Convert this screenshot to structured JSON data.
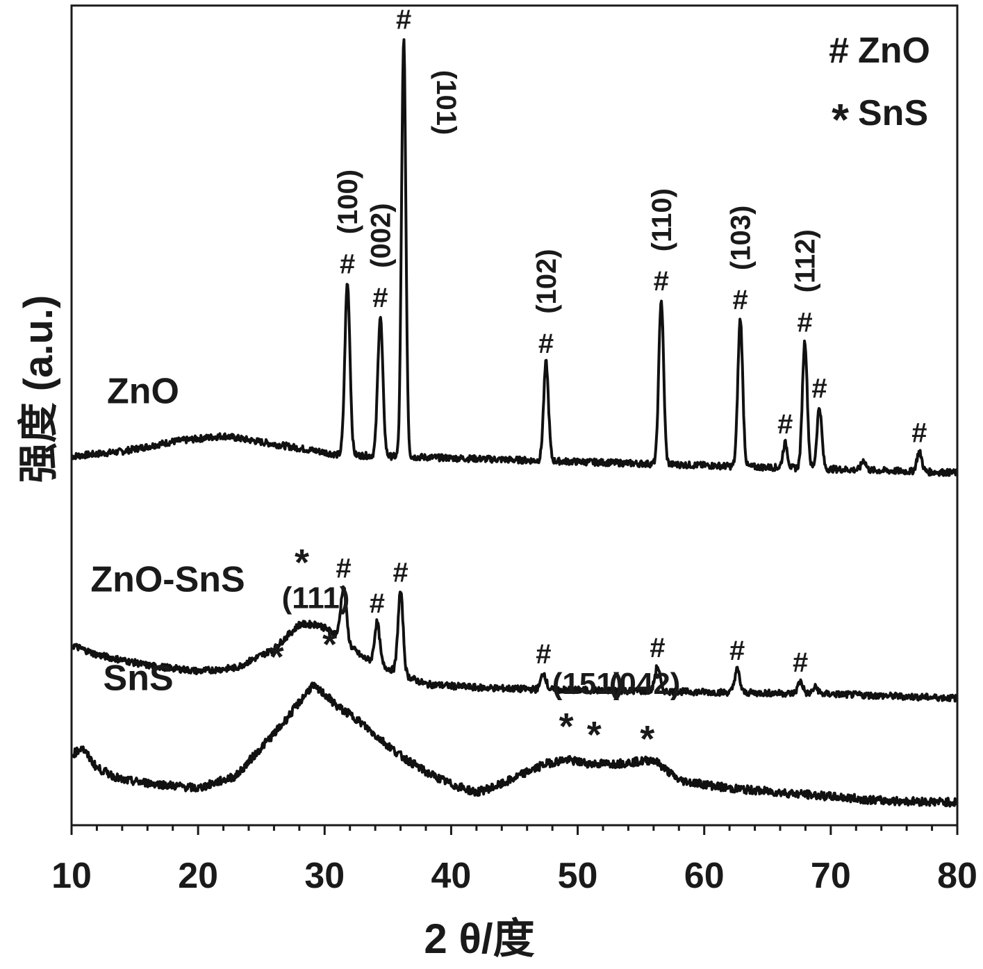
{
  "chart_data": {
    "type": "line",
    "xlabel": "2 θ/度",
    "ylabel": "强度 (a.u.)",
    "xlim": [
      10,
      80
    ],
    "x_ticks": [
      "10",
      "20",
      "30",
      "40",
      "50",
      "60",
      "70",
      "80"
    ],
    "y_ticks": [],
    "grid": false,
    "legend_position": "top-right",
    "legend": [
      {
        "symbol": "#",
        "label": "ZnO"
      },
      {
        "symbol": "*",
        "label": "SnS"
      }
    ],
    "series": [
      {
        "name": "ZnO",
        "baseline": 0.44,
        "noise": 0.004,
        "x": [
          10,
          14,
          18,
          22,
          26,
          30,
          31,
          80
        ],
        "y": [
          0.45,
          0.456,
          0.468,
          0.475,
          0.465,
          0.455,
          0.452,
          0.43
        ],
        "peaks": [
          {
            "x": 31.8,
            "h": 0.21,
            "w": 0.2,
            "label": "#"
          },
          {
            "x": 34.4,
            "h": 0.17,
            "w": 0.2,
            "label": "#"
          },
          {
            "x": 36.25,
            "h": 0.51,
            "w": 0.17,
            "label": "#"
          },
          {
            "x": 47.5,
            "h": 0.12,
            "w": 0.19,
            "label": "#"
          },
          {
            "x": 56.6,
            "h": 0.2,
            "w": 0.19,
            "label": "#"
          },
          {
            "x": 62.85,
            "h": 0.18,
            "w": 0.19,
            "label": "#"
          },
          {
            "x": 66.4,
            "h": 0.03,
            "w": 0.18,
            "label": "#"
          },
          {
            "x": 67.95,
            "h": 0.155,
            "w": 0.19,
            "label": "#"
          },
          {
            "x": 69.1,
            "h": 0.075,
            "w": 0.19,
            "label": "#"
          },
          {
            "x": 72.6,
            "h": 0.012,
            "w": 0.18,
            "label": ""
          },
          {
            "x": 77.0,
            "h": 0.024,
            "w": 0.2,
            "label": "#"
          }
        ],
        "miller_labels": [
          {
            "text": "(100)",
            "x": 31.8
          },
          {
            "text": "(002)",
            "x": 34.4
          },
          {
            "text": "(101)",
            "x": 36.25
          },
          {
            "text": "(102)",
            "x": 47.5
          },
          {
            "text": "(110)",
            "x": 56.6
          },
          {
            "text": "(103)",
            "x": 62.85
          },
          {
            "text": "(112)",
            "x": 67.95
          }
        ]
      },
      {
        "name": "ZnO-SnS",
        "noise": 0.004,
        "x": [
          10,
          12,
          16,
          20,
          23,
          26,
          28,
          29.5,
          31,
          33,
          36,
          38,
          42,
          46,
          50,
          54,
          58,
          62,
          66,
          70,
          74,
          80
        ],
        "y": [
          0.22,
          0.208,
          0.195,
          0.188,
          0.192,
          0.215,
          0.245,
          0.245,
          0.232,
          0.205,
          0.185,
          0.172,
          0.168,
          0.166,
          0.165,
          0.164,
          0.163,
          0.162,
          0.161,
          0.16,
          0.158,
          0.155
        ],
        "peaks": [
          {
            "x": 31.5,
            "h": 0.065,
            "w": 0.22,
            "label": "#"
          },
          {
            "x": 34.15,
            "h": 0.05,
            "w": 0.2,
            "label": "#"
          },
          {
            "x": 36.0,
            "h": 0.1,
            "w": 0.2,
            "label": "#"
          },
          {
            "x": 47.3,
            "h": 0.02,
            "w": 0.2,
            "label": "#"
          },
          {
            "x": 56.3,
            "h": 0.03,
            "w": 0.2,
            "label": "#"
          },
          {
            "x": 62.6,
            "h": 0.028,
            "w": 0.2,
            "label": "#"
          },
          {
            "x": 67.6,
            "h": 0.015,
            "w": 0.2,
            "label": "#"
          },
          {
            "x": 68.8,
            "h": 0.008,
            "w": 0.2,
            "label": ""
          }
        ]
      },
      {
        "name": "SnS",
        "noise": 0.005,
        "x": [
          10,
          10.8,
          12,
          14,
          17,
          20,
          23,
          25,
          26.5,
          27.5,
          29,
          30,
          31,
          32.5,
          34,
          36,
          38,
          40,
          42,
          44,
          46,
          47.5,
          49,
          51,
          53,
          55,
          56,
          58,
          62,
          66,
          70,
          74,
          80
        ],
        "y": [
          0.085,
          0.095,
          0.07,
          0.055,
          0.05,
          0.045,
          0.06,
          0.095,
          0.12,
          0.14,
          0.17,
          0.16,
          0.145,
          0.13,
          0.11,
          0.085,
          0.065,
          0.05,
          0.04,
          0.05,
          0.065,
          0.075,
          0.08,
          0.075,
          0.075,
          0.078,
          0.08,
          0.055,
          0.045,
          0.04,
          0.035,
          0.03,
          0.028
        ]
      }
    ],
    "annotations": [
      {
        "text": "*",
        "x": 28.2,
        "y": 0.305
      },
      {
        "text": "(111)",
        "x": 29.3,
        "y": 0.265
      },
      {
        "text": "*",
        "x": 26.2,
        "y": 0.19
      },
      {
        "text": "*",
        "x": 30.4,
        "y": 0.205
      },
      {
        "text": "(151)",
        "x": 50.8,
        "y": 0.16
      },
      {
        "text": "(042)",
        "x": 55.3,
        "y": 0.16
      },
      {
        "text": "*",
        "x": 49.1,
        "y": 0.105
      },
      {
        "text": "*",
        "x": 51.3,
        "y": 0.095
      },
      {
        "text": "*",
        "x": 55.5,
        "y": 0.09
      }
    ],
    "series_labels": [
      {
        "text": "ZnO",
        "x": 12.8,
        "y": 0.515
      },
      {
        "text": "ZnO-SnS",
        "x": 11.5,
        "y": 0.285
      },
      {
        "text": "SnS",
        "x": 12.5,
        "y": 0.165
      }
    ]
  }
}
